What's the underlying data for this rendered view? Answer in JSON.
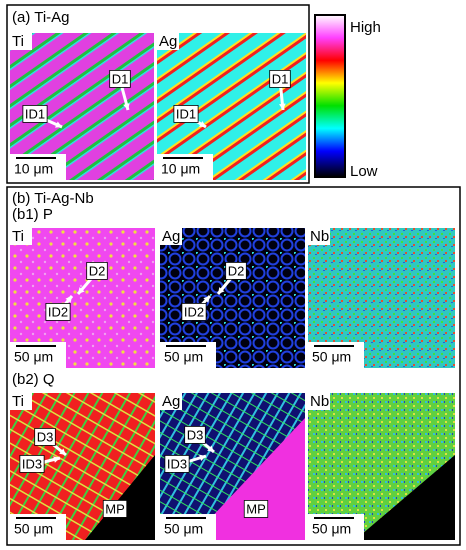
{
  "panel_a": {
    "title": "(a) Ti-Ag",
    "maps": [
      {
        "element": "Ti",
        "annotations": [
          "D1",
          "ID1"
        ],
        "scale": "10 μm"
      },
      {
        "element": "Ag",
        "annotations": [
          "D1",
          "ID1"
        ],
        "scale": "10 μm"
      }
    ]
  },
  "colorbar": {
    "high": "High",
    "low": "Low"
  },
  "panel_b": {
    "title": "(b) Ti-Ag-Nb",
    "rows": [
      {
        "title": "(b1) P",
        "maps": [
          {
            "element": "Ti",
            "annotations": [
              "D2",
              "ID2"
            ],
            "scale": "50 μm"
          },
          {
            "element": "Ag",
            "annotations": [
              "D2",
              "ID2"
            ],
            "scale": "50 μm"
          },
          {
            "element": "Nb",
            "scale": "50 μm"
          }
        ]
      },
      {
        "title": "(b2) Q",
        "maps": [
          {
            "element": "Ti",
            "annotations": [
              "D3",
              "ID3",
              "MP"
            ],
            "scale": "50 μm"
          },
          {
            "element": "Ag",
            "annotations": [
              "D3",
              "ID3",
              "MP"
            ],
            "scale": "50 μm"
          },
          {
            "element": "Nb",
            "scale": "50 μm"
          }
        ]
      }
    ]
  }
}
